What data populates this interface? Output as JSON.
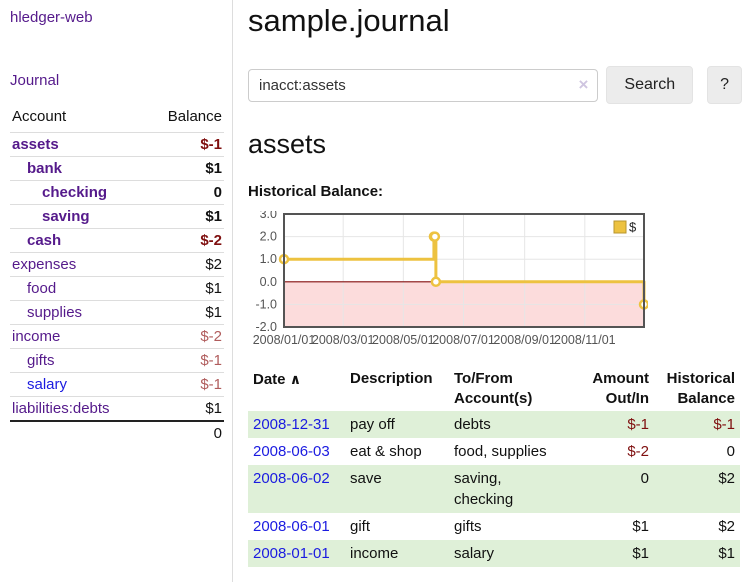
{
  "app": {
    "title": "hledger-web",
    "nav_journal": "Journal"
  },
  "sidebar": {
    "header": {
      "account": "Account",
      "balance": "Balance"
    },
    "accounts": [
      {
        "name": "assets",
        "balance": "$-1"
      },
      {
        "name": "bank",
        "balance": "$1"
      },
      {
        "name": "checking",
        "balance": "0"
      },
      {
        "name": "saving",
        "balance": "$1"
      },
      {
        "name": "cash",
        "balance": "$-2"
      },
      {
        "name": "expenses",
        "balance": "$2"
      },
      {
        "name": "food",
        "balance": "$1"
      },
      {
        "name": "supplies",
        "balance": "$1"
      },
      {
        "name": "income",
        "balance": "$-2"
      },
      {
        "name": "gifts",
        "balance": "$-1"
      },
      {
        "name": "salary",
        "balance": "$-1"
      },
      {
        "name": "liabilities:debts",
        "balance": "$1"
      }
    ],
    "total": "0"
  },
  "main": {
    "title": "sample.journal"
  },
  "search": {
    "value": "inacct:assets",
    "clear_icon": "×",
    "search_button": "Search",
    "help_button": "?"
  },
  "account_view": {
    "heading": "assets"
  },
  "chart_data": {
    "type": "line",
    "step": true,
    "title": "Historical Balance:",
    "series": [
      {
        "name": "$",
        "color": "#edc240",
        "points": [
          [
            "2008-01-01",
            1
          ],
          [
            "2008-06-01",
            2
          ],
          [
            "2008-06-02",
            2
          ],
          [
            "2008-06-03",
            0
          ],
          [
            "2008-12-31",
            -1
          ]
        ]
      }
    ],
    "x_range": [
      "2008-01-01",
      "2008-12-31"
    ],
    "x_ticks": [
      "2008/01/01",
      "2008/03/01",
      "2008/05/01",
      "2008/07/01",
      "2008/09/01",
      "2008/11/01"
    ],
    "y_ticks": [
      3.0,
      2.0,
      1.0,
      0.0,
      -1.0,
      -2.0
    ],
    "ylim": [
      -2,
      3
    ],
    "grid": true,
    "legend_position": "top-right",
    "colors": {
      "grid": "#e6e6e6",
      "border": "#545454",
      "negative_region": "#fcdcdc",
      "zero_line": "#871111",
      "tick_label": "#545454",
      "marker_fill": "#ffffff",
      "legend_swatch_border": "#b8952e"
    }
  },
  "transactions": {
    "columns": [
      "Date",
      "Description",
      "To/From Account(s)",
      "Amount Out/In",
      "Historical Balance"
    ],
    "sort_icon": "∧",
    "rows": [
      {
        "date": "2008-12-31",
        "description": "pay off",
        "accounts": "debts",
        "amount": "$-1",
        "balance": "$-1"
      },
      {
        "date": "2008-06-03",
        "description": "eat & shop",
        "accounts": "food, supplies",
        "amount": "$-2",
        "balance": "0"
      },
      {
        "date": "2008-06-02",
        "description": "save",
        "accounts": "saving,\nchecking",
        "amount": "0",
        "balance": "$2"
      },
      {
        "date": "2008-06-01",
        "description": "gift",
        "accounts": "gifts",
        "amount": "$1",
        "balance": "$2"
      },
      {
        "date": "2008-01-01",
        "description": "income",
        "accounts": "salary",
        "amount": "$1",
        "balance": "$1"
      }
    ]
  }
}
